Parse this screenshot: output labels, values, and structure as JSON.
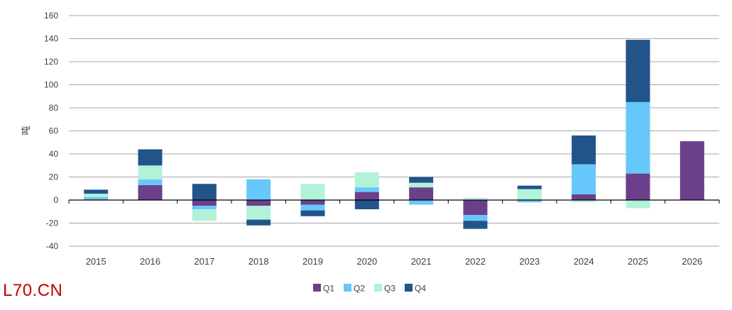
{
  "chart_data": {
    "type": "bar",
    "stacked": true,
    "title": "",
    "xlabel": "",
    "ylabel": "吨",
    "ylim": [
      -40,
      160
    ],
    "yticks": [
      -40,
      -20,
      0,
      20,
      40,
      60,
      80,
      100,
      120,
      140,
      160
    ],
    "grid": true,
    "legend_position": "bottom",
    "categories": [
      "2015",
      "2016",
      "2017",
      "2018",
      "2019",
      "2020",
      "2021",
      "2022",
      "2023",
      "2024",
      "2025",
      "2026"
    ],
    "series": [
      {
        "name": "Q1",
        "color": "#6b3f8a",
        "values": [
          0.5,
          13,
          -5,
          -5,
          -4,
          7,
          11,
          -13,
          0.5,
          5,
          23,
          51
        ]
      },
      {
        "name": "Q2",
        "color": "#66c8fa",
        "values": [
          2,
          5,
          -3,
          18,
          -5,
          4,
          -4,
          -5,
          -2,
          26,
          62,
          0
        ]
      },
      {
        "name": "Q3",
        "color": "#b2f2d9",
        "values": [
          3,
          12,
          -10,
          -12,
          14,
          13,
          4,
          2,
          9,
          -2,
          -7,
          0
        ]
      },
      {
        "name": "Q4",
        "color": "#22548a",
        "values": [
          3.5,
          14,
          14,
          -5,
          -5,
          -8,
          5,
          -7,
          3,
          25,
          54,
          0
        ]
      }
    ]
  },
  "watermark": "L70.CN"
}
